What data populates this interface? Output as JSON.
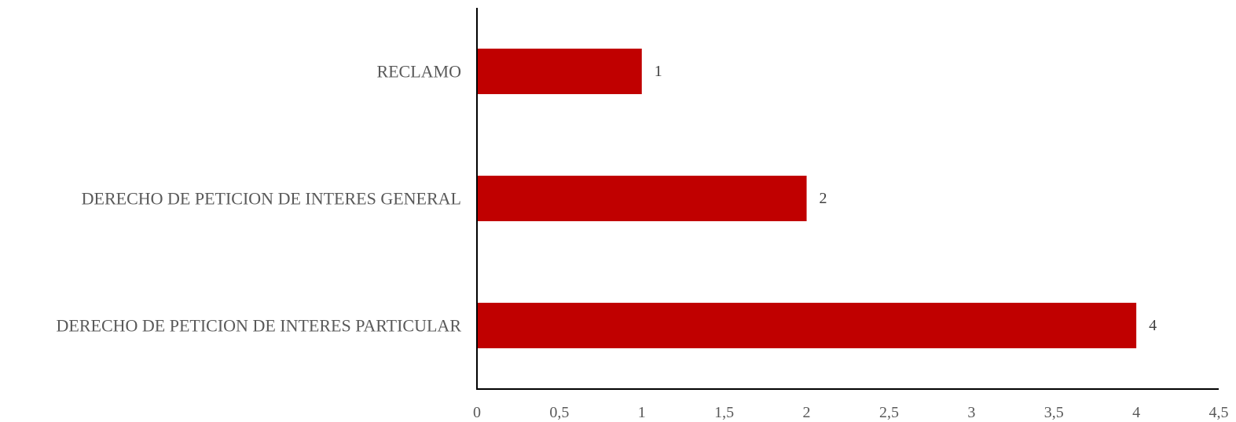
{
  "chart_data": {
    "type": "bar",
    "orientation": "horizontal",
    "categories": [
      "RECLAMO",
      "DERECHO DE PETICION DE INTERES GENERAL",
      "DERECHO DE PETICION DE INTERES PARTICULAR"
    ],
    "values": [
      1,
      2,
      4
    ],
    "data_labels": [
      "1",
      "2",
      "4"
    ],
    "x_ticks": [
      "0",
      "0,5",
      "1",
      "1,5",
      "2",
      "2,5",
      "3",
      "3,5",
      "4",
      "4,5"
    ],
    "xlim": [
      0,
      4.5
    ],
    "title": "",
    "xlabel": "",
    "ylabel": "",
    "grid": false,
    "legend": "none",
    "bar_color": "#C00000"
  }
}
